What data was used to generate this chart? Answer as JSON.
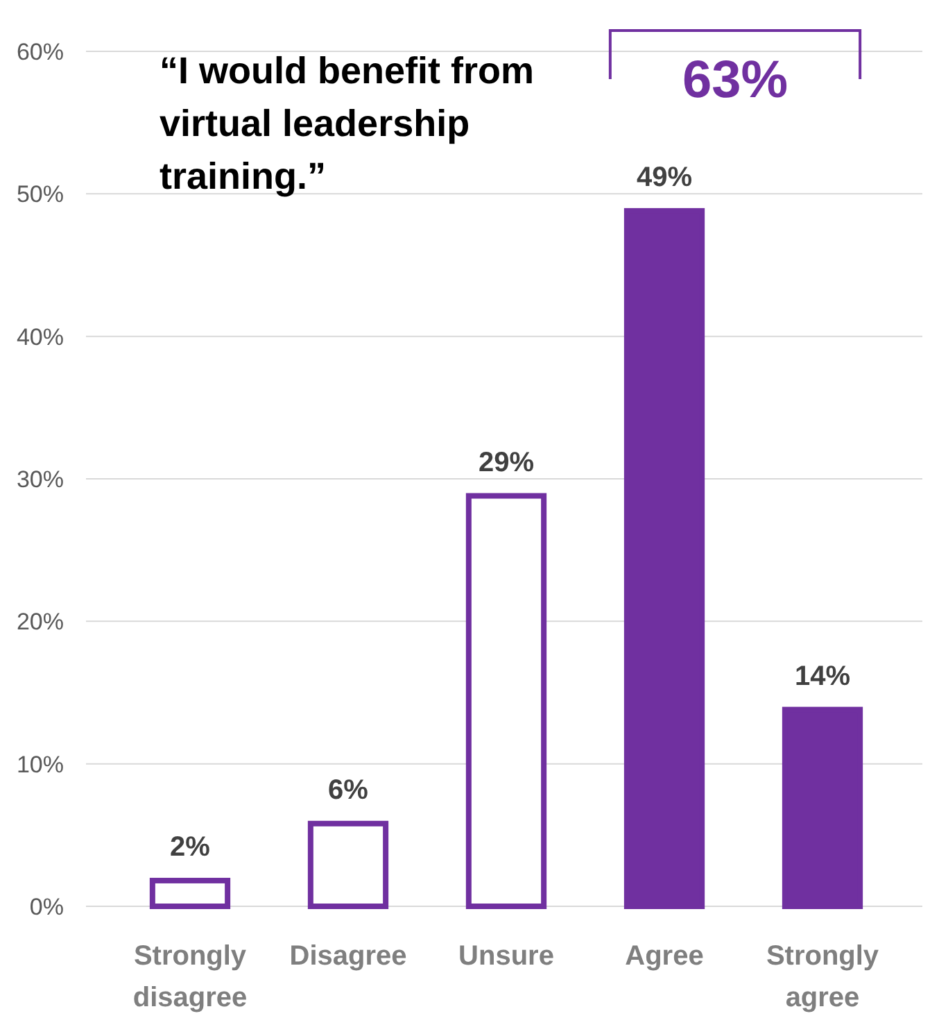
{
  "chart_data": {
    "type": "bar",
    "title": "“I would benefit from virtual leadership training.”",
    "categories": [
      "Strongly disagree",
      "Disagree",
      "Unsure",
      "Agree",
      "Strongly agree"
    ],
    "values": [
      2,
      6,
      29,
      49,
      14
    ],
    "value_labels": [
      "2%",
      "6%",
      "29%",
      "49%",
      "14%"
    ],
    "color": "#7030a0",
    "colors": [
      "#ffffff",
      "#ffffff",
      "#ffffff",
      "#7030a0",
      "#7030a0"
    ],
    "ylim": [
      0,
      60
    ],
    "yticks": [
      {
        "value": 0,
        "label": "0%"
      },
      {
        "value": 10,
        "label": "10%"
      },
      {
        "value": 20,
        "label": "20%"
      },
      {
        "value": 30,
        "label": "30%"
      },
      {
        "value": 40,
        "label": "40%"
      },
      {
        "value": 50,
        "label": "50%"
      },
      {
        "value": 60,
        "label": "60%"
      }
    ],
    "grid": "y",
    "annotations": [
      "63%"
    ]
  }
}
